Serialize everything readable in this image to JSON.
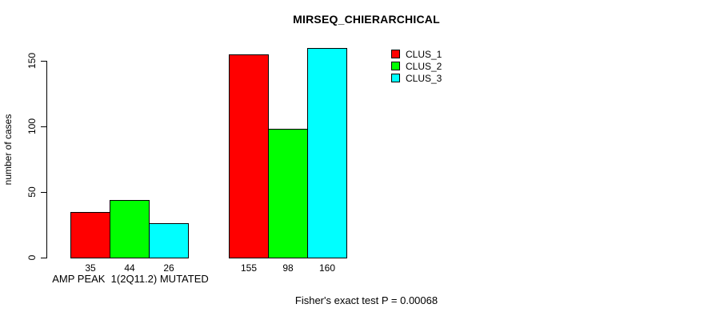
{
  "window": {
    "background": "#FFFFFF"
  },
  "chart_data": {
    "type": "bar",
    "title": "MIRSEQ_CHIERARCHICAL",
    "ylabel": "number of cases",
    "xlabel": "",
    "ylim": [
      0,
      160
    ],
    "yticks": [
      0,
      50,
      100,
      150
    ],
    "grid": false,
    "legend_position": "top-right",
    "categories": [
      "AMP PEAK  1(2Q11.2) MUTATED",
      ""
    ],
    "series": [
      {
        "name": "CLUS_1",
        "color": "#FF0000",
        "values": [
          35,
          155
        ]
      },
      {
        "name": "CLUS_2",
        "color": "#00FF00",
        "values": [
          44,
          98
        ]
      },
      {
        "name": "CLUS_3",
        "color": "#00FFFF",
        "values": [
          26,
          160
        ]
      }
    ],
    "bar_value_labels": [
      [
        "35",
        "44",
        "26"
      ],
      [
        "155",
        "98",
        "160"
      ]
    ],
    "annotation": "Fisher's exact test P = 0.00068",
    "bar_edge_color": "#000000",
    "text_color": "#000000"
  }
}
